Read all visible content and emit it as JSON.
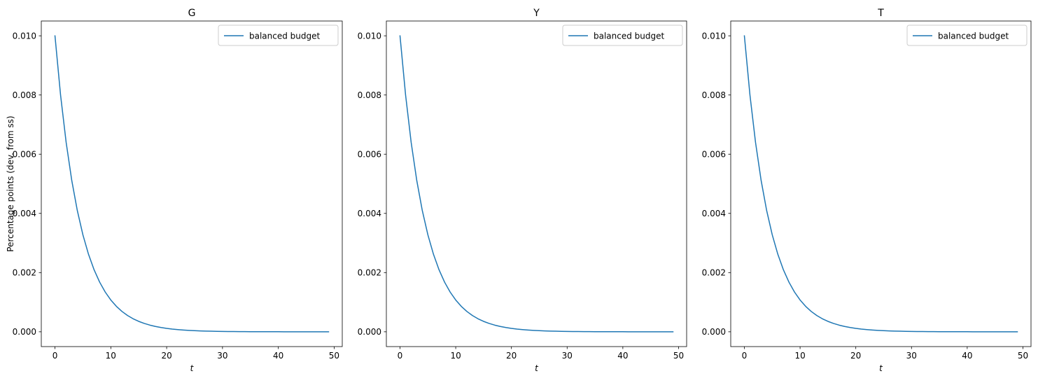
{
  "chart_data": [
    {
      "type": "line",
      "title": "G",
      "xlabel": "t",
      "ylabel": "Percentage points (dev. from ss)",
      "xlim": [
        -2.45,
        51.45
      ],
      "ylim": [
        -0.0005,
        0.0105
      ],
      "xticks": [
        0,
        10,
        20,
        30,
        40,
        50
      ],
      "xtick_labels": [
        "0",
        "10",
        "20",
        "30",
        "40",
        "50"
      ],
      "yticks": [
        0.0,
        0.002,
        0.004,
        0.006,
        0.008,
        0.01
      ],
      "ytick_labels": [
        "0.000",
        "0.002",
        "0.004",
        "0.006",
        "0.008",
        "0.010"
      ],
      "legend_position": "upper right",
      "grid": false,
      "series": [
        {
          "name": "balanced budget",
          "color": "#1f77b4",
          "x_start": 0,
          "x_end": 49,
          "x_step": 1,
          "y_start": 0.01,
          "decay_per_step": 0.8
        }
      ]
    },
    {
      "type": "line",
      "title": "Y",
      "xlabel": "t",
      "ylabel": "",
      "xlim": [
        -2.45,
        51.45
      ],
      "ylim": [
        -0.0005,
        0.0105
      ],
      "xticks": [
        0,
        10,
        20,
        30,
        40,
        50
      ],
      "xtick_labels": [
        "0",
        "10",
        "20",
        "30",
        "40",
        "50"
      ],
      "yticks": [
        0.0,
        0.002,
        0.004,
        0.006,
        0.008,
        0.01
      ],
      "ytick_labels": [
        "0.000",
        "0.002",
        "0.004",
        "0.006",
        "0.008",
        "0.010"
      ],
      "legend_position": "upper right",
      "grid": false,
      "series": [
        {
          "name": "balanced budget",
          "color": "#1f77b4",
          "x_start": 0,
          "x_end": 49,
          "x_step": 1,
          "y_start": 0.01,
          "decay_per_step": 0.8
        }
      ]
    },
    {
      "type": "line",
      "title": "T",
      "xlabel": "t",
      "ylabel": "",
      "xlim": [
        -2.45,
        51.45
      ],
      "ylim": [
        -0.0005,
        0.0105
      ],
      "xticks": [
        0,
        10,
        20,
        30,
        40,
        50
      ],
      "xtick_labels": [
        "0",
        "10",
        "20",
        "30",
        "40",
        "50"
      ],
      "yticks": [
        0.0,
        0.002,
        0.004,
        0.006,
        0.008,
        0.01
      ],
      "ytick_labels": [
        "0.000",
        "0.002",
        "0.004",
        "0.006",
        "0.008",
        "0.010"
      ],
      "legend_position": "upper right",
      "grid": false,
      "series": [
        {
          "name": "balanced budget",
          "color": "#1f77b4",
          "x_start": 0,
          "x_end": 49,
          "x_step": 1,
          "y_start": 0.01,
          "decay_per_step": 0.8
        }
      ]
    }
  ]
}
